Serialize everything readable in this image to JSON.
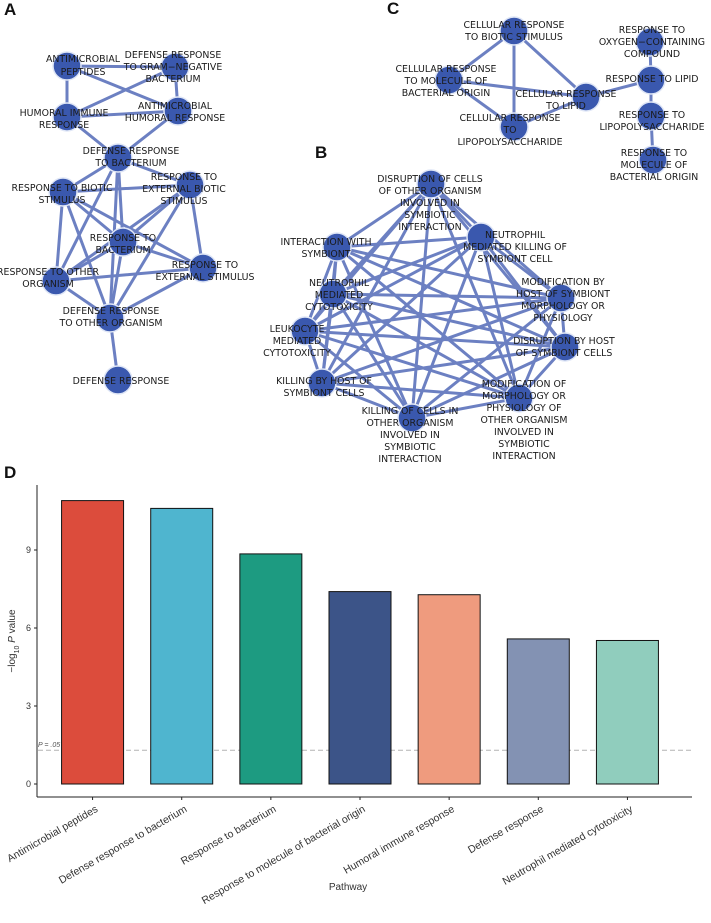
{
  "panels": {
    "a": {
      "letter": "A",
      "nodes": [
        "ANTIMICROBIAL PEPTIDES",
        "DEFENSE RESPONSE TO GRAM−NEGATIVE BACTERIUM",
        "HUMORAL IMMUNE RESPONSE",
        "ANTIMICROBIAL HUMORAL RESPONSE",
        "DEFENSE RESPONSE TO BACTERIUM",
        "RESPONSE TO BIOTIC STIMULUS",
        "RESPONSE TO EXTERNAL BIOTIC STIMULUS",
        "RESPONSE TO BACTERIUM",
        "RESPONSE TO OTHER ORGANISM",
        "RESPONSE TO EXTERNAL STIMULUS",
        "DEFENSE RESPONSE TO OTHER ORGANISM",
        "DEFENSE RESPONSE"
      ],
      "edges": [
        [
          0,
          1
        ],
        [
          0,
          2
        ],
        [
          0,
          3
        ],
        [
          1,
          2
        ],
        [
          1,
          3
        ],
        [
          2,
          3
        ],
        [
          2,
          4
        ],
        [
          3,
          4
        ],
        [
          4,
          5
        ],
        [
          4,
          6
        ],
        [
          4,
          7
        ],
        [
          4,
          8
        ],
        [
          4,
          10
        ],
        [
          5,
          6
        ],
        [
          5,
          7
        ],
        [
          5,
          8
        ],
        [
          5,
          9
        ],
        [
          5,
          10
        ],
        [
          6,
          7
        ],
        [
          6,
          8
        ],
        [
          6,
          9
        ],
        [
          6,
          10
        ],
        [
          7,
          8
        ],
        [
          7,
          9
        ],
        [
          7,
          10
        ],
        [
          8,
          9
        ],
        [
          8,
          10
        ],
        [
          9,
          10
        ],
        [
          10,
          11
        ]
      ]
    },
    "b": {
      "letter": "B",
      "nodes": [
        "DISRUPTION OF CELLS OF OTHER ORGANISM INVOLVED IN SYMBIOTIC INTERACTION",
        "INTERACTION WITH SYMBIONT",
        "NEUTROPHIL MEDIATED KILLING OF SYMBIONT CELL",
        "NEUTROPHIL MEDIATED CYTOTOXICITY",
        "MODIFICATION BY HOST OF SYMBIONT MORPHOLOGY OR PHYSIOLOGY",
        "LEUKOCYTE MEDIATED CYTOTOXICITY",
        "DISRUPTION BY HOST OF SYMBIONT CELLS",
        "KILLING BY HOST OF SYMBIONT CELLS",
        "MODIFICATION OF MORPHOLOGY OR PHYSIOLOGY OF OTHER ORGANISM INVOLVED IN SYMBIOTIC INTERACTION",
        "KILLING OF CELLS IN OTHER ORGANISM INVOLVED IN SYMBIOTIC INTERACTION"
      ],
      "edges": "complete"
    },
    "c": {
      "letter": "C",
      "nodes": [
        "CELLULAR RESPONSE TO BIOTIC STIMULUS",
        "CELLULAR RESPONSE TO MOLECULE OF BACTERIAL ORIGIN",
        "CELLULAR RESPONSE TO LIPID",
        "CELLULAR RESPONSE TO LIPOPOLYSACCHARIDE",
        "RESPONSE TO OXYGEN−CONTAINING COMPOUND",
        "RESPONSE TO LIPID",
        "RESPONSE TO LIPOPOLYSACCHARIDE",
        "RESPONSE TO MOLECULE OF BACTERIAL ORIGIN"
      ],
      "edges": [
        [
          0,
          1
        ],
        [
          0,
          2
        ],
        [
          0,
          3
        ],
        [
          1,
          2
        ],
        [
          1,
          3
        ],
        [
          2,
          3
        ],
        [
          2,
          5
        ],
        [
          4,
          5
        ],
        [
          5,
          6
        ],
        [
          6,
          7
        ]
      ]
    }
  },
  "chart_data": {
    "letter": "D",
    "type": "bar",
    "categories": [
      "Antimicrobial peptides",
      "Defense response to bacterium",
      "Response to bacterium",
      "Response to molecule of bacterial origin",
      "Humoral immune response",
      "Defense response",
      "Neutrophil mediated cytotoxicity"
    ],
    "values": [
      10.9,
      10.6,
      8.85,
      7.4,
      7.28,
      5.58,
      5.52
    ],
    "colors": [
      "#dc4c3c",
      "#4fb5cf",
      "#1d9b81",
      "#3c5488",
      "#ef9b7e",
      "#8392b3",
      "#90cdbd"
    ],
    "xlabel": "Pathway",
    "ylabel_parts": [
      "−log",
      "10",
      " ",
      "P",
      " value"
    ],
    "ylim": [
      -0.5,
      11.5
    ],
    "yticks": [
      0,
      3,
      6,
      9
    ],
    "threshold": {
      "value": 1.3,
      "label": "P = .05",
      "color": "#b3b3b3"
    },
    "grid": false
  }
}
